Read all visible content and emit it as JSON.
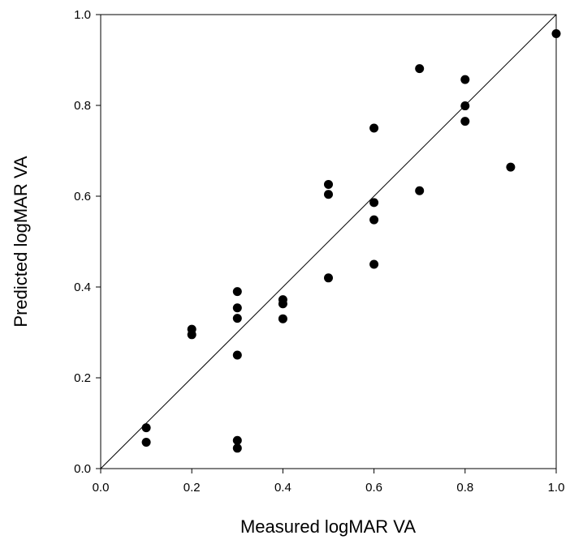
{
  "chart_data": {
    "type": "scatter",
    "title": "",
    "xlabel": "Measured logMAR VA",
    "ylabel": "Predicted logMAR VA",
    "xlim": [
      0.0,
      1.0
    ],
    "ylim": [
      0.0,
      1.0
    ],
    "x_ticks": [
      "0.0",
      "0.2",
      "0.4",
      "0.6",
      "0.8",
      "1.0"
    ],
    "y_ticks": [
      "0.0",
      "0.2",
      "0.4",
      "0.6",
      "0.8",
      "1.0"
    ],
    "grid": false,
    "reference_line": "identity (y = x)",
    "points": [
      {
        "x": 0.1,
        "y": 0.09
      },
      {
        "x": 0.1,
        "y": 0.058
      },
      {
        "x": 0.2,
        "y": 0.307
      },
      {
        "x": 0.2,
        "y": 0.295
      },
      {
        "x": 0.3,
        "y": 0.39
      },
      {
        "x": 0.3,
        "y": 0.354
      },
      {
        "x": 0.3,
        "y": 0.331
      },
      {
        "x": 0.3,
        "y": 0.25
      },
      {
        "x": 0.3,
        "y": 0.062
      },
      {
        "x": 0.3,
        "y": 0.045
      },
      {
        "x": 0.4,
        "y": 0.372
      },
      {
        "x": 0.4,
        "y": 0.363
      },
      {
        "x": 0.4,
        "y": 0.33
      },
      {
        "x": 0.5,
        "y": 0.626
      },
      {
        "x": 0.5,
        "y": 0.604
      },
      {
        "x": 0.5,
        "y": 0.42
      },
      {
        "x": 0.6,
        "y": 0.75
      },
      {
        "x": 0.6,
        "y": 0.586
      },
      {
        "x": 0.6,
        "y": 0.548
      },
      {
        "x": 0.6,
        "y": 0.45
      },
      {
        "x": 0.7,
        "y": 0.881
      },
      {
        "x": 0.7,
        "y": 0.612
      },
      {
        "x": 0.8,
        "y": 0.857
      },
      {
        "x": 0.8,
        "y": 0.799
      },
      {
        "x": 0.8,
        "y": 0.765
      },
      {
        "x": 0.9,
        "y": 0.664
      },
      {
        "x": 1.0,
        "y": 0.958
      }
    ],
    "marker_color": "#000000",
    "line_color": "#000000"
  }
}
